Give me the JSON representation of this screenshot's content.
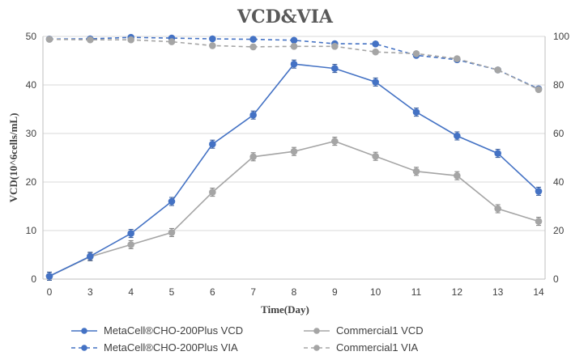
{
  "chart_data": {
    "type": "line",
    "title": "VCD&VIA",
    "xlabel": "Time(Day)",
    "ylabel": "VCD(10^6cells/mL)",
    "y2label": "",
    "x": [
      "0",
      "3",
      "4",
      "5",
      "6",
      "7",
      "8",
      "9",
      "10",
      "11",
      "12",
      "13",
      "14"
    ],
    "ylim": [
      0,
      50
    ],
    "y2lim": [
      0,
      100
    ],
    "yticks": [
      "0",
      "10",
      "20",
      "30",
      "40",
      "50"
    ],
    "y2ticks": [
      "0",
      "20",
      "40",
      "60",
      "80",
      "100"
    ],
    "grid": "horizontal",
    "legend_position": "bottom",
    "series": [
      {
        "name": "MetaCell®CHO-200Plus VCD",
        "axis": "left",
        "style": "solid",
        "color": "#4472C4",
        "values": [
          0.6,
          4.7,
          9.4,
          16.0,
          27.8,
          33.8,
          44.3,
          43.4,
          40.6,
          34.4,
          29.5,
          25.9,
          18.1
        ]
      },
      {
        "name": "MetaCell®CHO-200Plus  VIA",
        "axis": "right",
        "style": "dashed",
        "color": "#4472C4",
        "values": [
          98.9,
          99.0,
          99.6,
          99.3,
          99.0,
          98.8,
          98.4,
          97.0,
          96.9,
          92.2,
          90.4,
          86.2,
          78.4
        ]
      },
      {
        "name": "Commercial1  VCD",
        "axis": "left",
        "style": "solid",
        "color": "#A5A5A5",
        "values": [
          0.6,
          4.6,
          7.1,
          9.6,
          17.9,
          25.2,
          26.3,
          28.4,
          25.3,
          22.2,
          21.3,
          14.5,
          11.9
        ]
      },
      {
        "name": "Commercial1 VIA",
        "axis": "right",
        "style": "dashed",
        "color": "#A5A5A5",
        "values": [
          98.8,
          98.6,
          98.6,
          97.8,
          96.2,
          95.7,
          95.9,
          95.9,
          93.6,
          92.9,
          90.8,
          86.2,
          78.1
        ]
      }
    ]
  }
}
